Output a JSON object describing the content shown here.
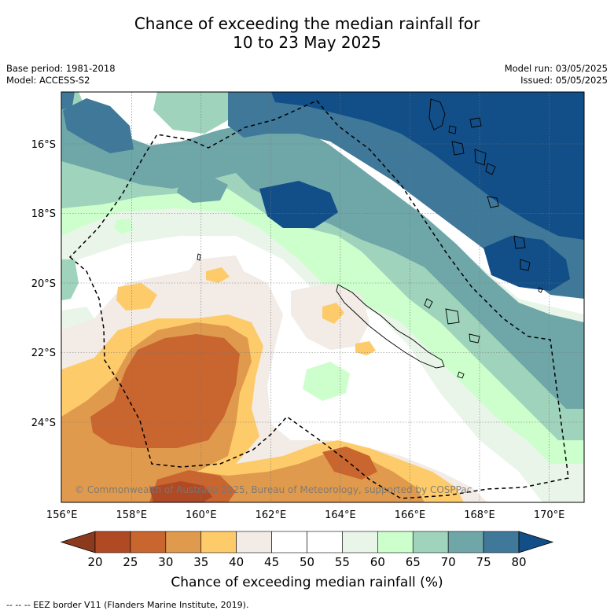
{
  "title_line1": "Chance of exceeding the median rainfall for",
  "title_line2": "10 to 23 May 2025",
  "meta_left": [
    "Base period: 1981-2018",
    "Model: ACCESS-S2"
  ],
  "meta_right": [
    "Model run: 03/05/2025",
    "Issued: 05/05/2025"
  ],
  "map": {
    "lon_ticks": [
      "156°E",
      "158°E",
      "160°E",
      "162°E",
      "164°E",
      "166°E",
      "168°E",
      "170°E"
    ],
    "lat_ticks": [
      "16°S",
      "18°S",
      "20°S",
      "22°S",
      "24°S"
    ],
    "copyright": "© Commonwealth of Australia 2025, Bureau of Meteorology, supported by COSPPac",
    "gridlines": true,
    "eez_style": "dashed"
  },
  "colorbar": {
    "ticks": [
      "20",
      "25",
      "30",
      "35",
      "40",
      "45",
      "50",
      "55",
      "60",
      "65",
      "70",
      "75",
      "80"
    ],
    "colors": [
      "#8c3a1e",
      "#b04a25",
      "#c9652f",
      "#e09a4d",
      "#fecb6a",
      "#f2ebe6",
      "#ffffff",
      "#ffffff",
      "#eaf5ea",
      "#ccffcc",
      "#9fd3bc",
      "#6fa7a8",
      "#3f7898",
      "#124e87"
    ],
    "label": "Chance of exceeding median rainfall (%)"
  },
  "footnote": "-- -- -- EEZ border V11 (Flanders Marine Institute, 2019)."
}
